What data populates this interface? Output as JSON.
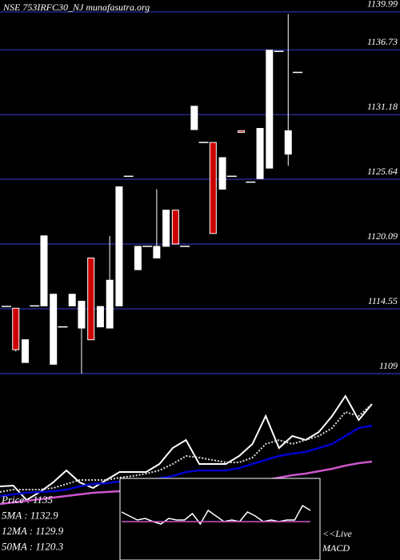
{
  "chart_data": {
    "type": "candlestick",
    "title": "NSE 753IRFC30_NJ munafasutra.org",
    "ylim": [
      1109,
      1141
    ],
    "yticks": [
      1139.99,
      1136.73,
      1131.18,
      1125.64,
      1120.09,
      1114.55,
      1109
    ],
    "grid": true,
    "grid_color": "#20206e",
    "up_color": "#ffffff",
    "down_color": "#cc0000",
    "open": [
      1114.75,
      1114.6,
      1109.95,
      1114.8,
      1114.8,
      1109.8,
      1113.0,
      1114.8,
      1112.9,
      1118.9,
      1113.0,
      1112.9,
      1114.8,
      1125.9,
      1117.9,
      1119.9,
      1118.9,
      1119.9,
      1123.0,
      1119.9,
      1129.9,
      1128.8,
      1128.8,
      1124.8,
      1125.9,
      1129.8,
      1125.4,
      1125.7,
      1126.6,
      1136.6,
      1127.8,
      1134.8
    ],
    "high": [
      1114.75,
      1114.6,
      1111.9,
      1114.8,
      1120.8,
      1115.8,
      1113.0,
      1115.8,
      1115.2,
      1118.9,
      1114.75,
      1120.8,
      1125.0,
      1125.9,
      1119.9,
      1119.9,
      1124.8,
      1123.0,
      1123.0,
      1119.9,
      1131.9,
      1128.8,
      1128.8,
      1127.5,
      1125.9,
      1129.8,
      1125.4,
      1130.0,
      1136.7,
      1136.6,
      1139.8,
      1134.8
    ],
    "low": [
      1114.75,
      1110.9,
      1109.95,
      1114.8,
      1114.8,
      1109.8,
      1113.0,
      1114.8,
      1109.0,
      1111.9,
      1113.0,
      1112.9,
      1114.8,
      1125.9,
      1117.9,
      1119.9,
      1118.9,
      1119.9,
      1120.1,
      1119.9,
      1129.9,
      1128.8,
      1121.0,
      1124.8,
      1125.9,
      1129.7,
      1125.4,
      1125.7,
      1126.6,
      1136.6,
      1126.8,
      1134.8
    ],
    "close": [
      1114.75,
      1111.05,
      1111.9,
      1114.8,
      1120.8,
      1115.8,
      1113.0,
      1115.8,
      1115.2,
      1111.9,
      1114.75,
      1117.0,
      1125.0,
      1125.9,
      1119.9,
      1119.9,
      1119.9,
      1123.0,
      1120.1,
      1119.9,
      1131.9,
      1128.8,
      1121.0,
      1127.5,
      1125.9,
      1129.7,
      1125.4,
      1130.0,
      1136.7,
      1136.6,
      1129.8,
      1134.8
    ],
    "indicators": {
      "ylim": [
        0,
        230
      ],
      "series": [
        {
          "name": "Price : 1135",
          "color": "#ffffff",
          "values": [
            92,
            93,
            75,
            85,
            97,
            112,
            97,
            90,
            100,
            110,
            110,
            110,
            120,
            140,
            150,
            120,
            120,
            120,
            130,
            145,
            180,
            140,
            155,
            150,
            160,
            180,
            205,
            175,
            195
          ]
        },
        {
          "name": "5MA : 1132.9",
          "color": "#dddddd",
          "dashed": true,
          "values": [
            85,
            88,
            88,
            88,
            90,
            95,
            100,
            100,
            100,
            103,
            105,
            108,
            112,
            120,
            130,
            128,
            125,
            122,
            122,
            128,
            145,
            150,
            145,
            150,
            155,
            165,
            185,
            180,
            195
          ]
        },
        {
          "name": "12MA : 1129.9",
          "color": "#0000cc",
          "values": [
            80,
            82,
            84,
            85,
            86,
            88,
            92,
            95,
            96,
            98,
            100,
            100,
            102,
            105,
            110,
            112,
            112,
            112,
            115,
            120,
            125,
            130,
            133,
            135,
            140,
            145,
            155,
            165,
            168
          ]
        },
        {
          "name": "50MA : 1120.3",
          "color": "#cc55cc",
          "values": [
            70,
            72,
            74,
            76,
            78,
            80,
            82,
            84,
            85,
            86,
            87,
            88,
            89,
            90,
            91,
            92,
            93,
            94,
            96,
            98,
            100,
            103,
            106,
            108,
            111,
            114,
            118,
            121,
            123
          ]
        }
      ]
    },
    "macd": {
      "label": [
        "<<Live",
        "MACD"
      ],
      "series": [
        {
          "color": "#ffffff",
          "values": [
            60,
            55,
            50,
            52,
            48,
            45,
            52,
            50,
            50,
            58,
            45,
            62,
            55,
            48,
            50,
            48,
            60,
            55,
            48,
            50,
            48,
            50,
            50,
            68,
            62
          ]
        },
        {
          "color": "#cc55cc",
          "values": [
            48,
            48,
            48,
            48,
            48,
            48,
            48,
            48,
            48,
            48,
            48,
            48,
            48,
            48,
            48,
            48,
            48,
            48,
            48,
            48,
            48,
            48,
            48,
            48,
            48
          ]
        }
      ]
    }
  }
}
